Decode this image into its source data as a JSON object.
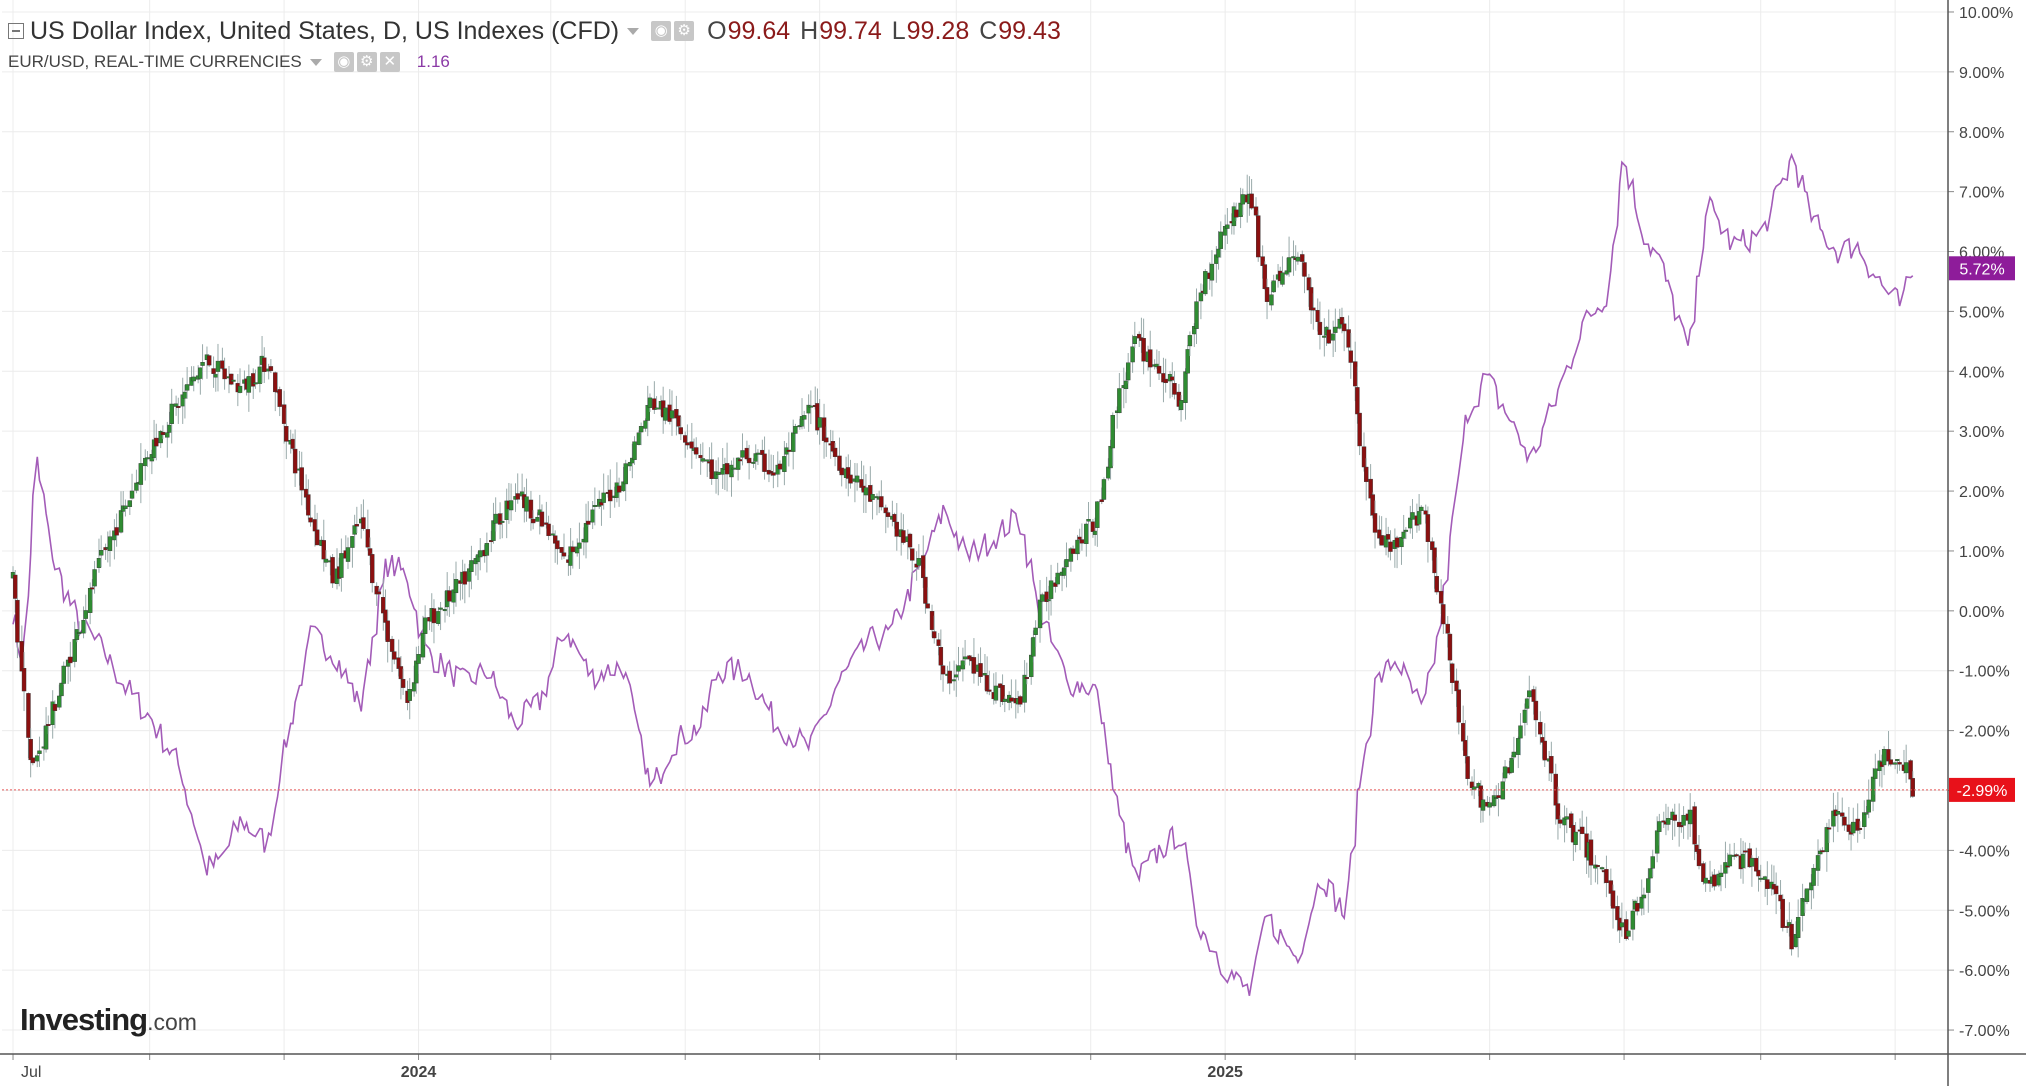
{
  "legend": {
    "main_title": "US Dollar Index, United States, D, US Indexes (CFD)",
    "ohlc": [
      {
        "key": "O",
        "value": "99.64"
      },
      {
        "key": "H",
        "value": "99.74"
      },
      {
        "key": "L",
        "value": "99.28"
      },
      {
        "key": "C",
        "value": "99.43"
      }
    ],
    "sub_title": "EUR/USD, REAL-TIME CURRENCIES",
    "sub_value": "1.16"
  },
  "logo": {
    "main": "Investing",
    "suffix": ".com"
  },
  "colors": {
    "up": "#2f8c32",
    "down": "#8b1010",
    "eurusd_line": "#a35cb8",
    "last_dxy_label": "#e8111a",
    "last_eur_label": "#8e1c9a",
    "grid": "#ececec"
  },
  "chart_data": {
    "type": "candlestick+line",
    "y_unit": "percent change",
    "ylim": [
      -7.4,
      10.2
    ],
    "y_ticks": [
      "10.00%",
      "9.00%",
      "8.00%",
      "7.00%",
      "6.00%",
      "5.00%",
      "4.00%",
      "3.00%",
      "2.00%",
      "1.00%",
      "0.00%",
      "-1.00%",
      "-2.00%",
      "-3.00%",
      "-4.00%",
      "-5.00%",
      "-6.00%",
      "-7.00%"
    ],
    "x_tick_labels": [
      "Jul",
      "2024",
      "2025"
    ],
    "grid": true,
    "series": [
      {
        "name": "US Dollar Index, United States, D, US Indexes (CFD)",
        "style": "candlestick",
        "last_label": "-2.99%",
        "close_points": [
          [
            "2023-07-01",
            0.6
          ],
          [
            "2023-07-10",
            -2.7
          ],
          [
            "2023-07-20",
            -1.6
          ],
          [
            "2023-07-31",
            -0.3
          ],
          [
            "2023-08-10",
            0.8
          ],
          [
            "2023-08-22",
            1.8
          ],
          [
            "2023-08-31",
            2.6
          ],
          [
            "2023-09-15",
            3.5
          ],
          [
            "2023-09-27",
            4.2
          ],
          [
            "2023-10-03",
            4.0
          ],
          [
            "2023-10-13",
            3.7
          ],
          [
            "2023-10-25",
            4.2
          ],
          [
            "2023-11-01",
            3.2
          ],
          [
            "2023-11-14",
            1.5
          ],
          [
            "2023-11-24",
            0.5
          ],
          [
            "2023-12-06",
            1.5
          ],
          [
            "2023-12-18",
            -0.3
          ],
          [
            "2023-12-27",
            -1.5
          ],
          [
            "2024-01-05",
            -0.2
          ],
          [
            "2024-01-22",
            0.5
          ],
          [
            "2024-02-02",
            1.2
          ],
          [
            "2024-02-14",
            2.0
          ],
          [
            "2024-02-26",
            1.5
          ],
          [
            "2024-03-08",
            0.8
          ],
          [
            "2024-03-20",
            1.6
          ],
          [
            "2024-04-03",
            2.2
          ],
          [
            "2024-04-16",
            3.5
          ],
          [
            "2024-04-26",
            3.2
          ],
          [
            "2024-05-09",
            2.6
          ],
          [
            "2024-05-16",
            2.2
          ],
          [
            "2024-05-29",
            2.6
          ],
          [
            "2024-06-12",
            2.3
          ],
          [
            "2024-06-27",
            3.4
          ],
          [
            "2024-07-10",
            2.5
          ],
          [
            "2024-07-24",
            1.9
          ],
          [
            "2024-08-02",
            1.6
          ],
          [
            "2024-08-16",
            0.7
          ],
          [
            "2024-08-27",
            -1.2
          ],
          [
            "2024-09-06",
            -0.8
          ],
          [
            "2024-09-18",
            -1.3
          ],
          [
            "2024-09-30",
            -1.6
          ],
          [
            "2024-10-09",
            0.0
          ],
          [
            "2024-10-22",
            1.0
          ],
          [
            "2024-11-04",
            1.5
          ],
          [
            "2024-11-14",
            3.6
          ],
          [
            "2024-11-22",
            4.5
          ],
          [
            "2024-12-03",
            4.0
          ],
          [
            "2024-12-12",
            3.5
          ],
          [
            "2024-12-20",
            5.2
          ],
          [
            "2025-01-02",
            6.5
          ],
          [
            "2025-01-13",
            7.0
          ],
          [
            "2025-01-20",
            5.2
          ],
          [
            "2025-02-03",
            6.0
          ],
          [
            "2025-02-14",
            4.5
          ],
          [
            "2025-02-25",
            4.8
          ],
          [
            "2025-03-03",
            3.0
          ],
          [
            "2025-03-11",
            1.2
          ],
          [
            "2025-03-20",
            1.0
          ],
          [
            "2025-04-01",
            1.8
          ],
          [
            "2025-04-08",
            0.4
          ],
          [
            "2025-04-21",
            -2.6
          ],
          [
            "2025-04-30",
            -3.4
          ],
          [
            "2025-05-12",
            -2.5
          ],
          [
            "2025-05-20",
            -1.3
          ],
          [
            "2025-06-02",
            -3.4
          ],
          [
            "2025-06-13",
            -3.9
          ],
          [
            "2025-06-24",
            -4.5
          ],
          [
            "2025-07-01",
            -5.4
          ],
          [
            "2025-07-11",
            -4.6
          ],
          [
            "2025-07-17",
            -3.6
          ],
          [
            "2025-07-31",
            -3.4
          ],
          [
            "2025-08-08",
            -4.7
          ],
          [
            "2025-08-20",
            -4.1
          ],
          [
            "2025-09-02",
            -4.3
          ],
          [
            "2025-09-16",
            -5.5
          ],
          [
            "2025-09-25",
            -4.3
          ],
          [
            "2025-10-06",
            -3.3
          ],
          [
            "2025-10-15",
            -3.7
          ],
          [
            "2025-10-27",
            -2.4
          ],
          [
            "2025-11-04",
            -2.4
          ],
          [
            "2025-11-10",
            -3.0
          ]
        ]
      },
      {
        "name": "EUR/USD, REAL-TIME CURRENCIES",
        "style": "line",
        "last_label": "5.72%",
        "points": [
          [
            "2023-07-01",
            0.0
          ],
          [
            "2023-07-06",
            -0.9
          ],
          [
            "2023-07-12",
            2.5
          ],
          [
            "2023-07-20",
            0.8
          ],
          [
            "2023-07-31",
            -0.2
          ],
          [
            "2023-08-10",
            -0.6
          ],
          [
            "2023-08-22",
            -1.3
          ],
          [
            "2023-08-31",
            -1.7
          ],
          [
            "2023-09-15",
            -2.6
          ],
          [
            "2023-09-27",
            -4.3
          ],
          [
            "2023-10-03",
            -4.2
          ],
          [
            "2023-10-13",
            -3.5
          ],
          [
            "2023-10-25",
            -3.9
          ],
          [
            "2023-11-01",
            -2.4
          ],
          [
            "2023-11-14",
            -0.4
          ],
          [
            "2023-11-24",
            -0.7
          ],
          [
            "2023-12-06",
            -1.6
          ],
          [
            "2023-12-18",
            0.8
          ],
          [
            "2023-12-27",
            0.6
          ],
          [
            "2024-01-05",
            -0.7
          ],
          [
            "2024-01-22",
            -1.2
          ],
          [
            "2024-02-02",
            -1.0
          ],
          [
            "2024-02-14",
            -1.9
          ],
          [
            "2024-02-26",
            -1.5
          ],
          [
            "2024-03-08",
            -0.3
          ],
          [
            "2024-03-20",
            -1.1
          ],
          [
            "2024-04-03",
            -0.9
          ],
          [
            "2024-04-16",
            -3.0
          ],
          [
            "2024-04-26",
            -2.2
          ],
          [
            "2024-05-09",
            -1.9
          ],
          [
            "2024-05-16",
            -1.0
          ],
          [
            "2024-05-29",
            -1.0
          ],
          [
            "2024-06-12",
            -1.9
          ],
          [
            "2024-06-27",
            -2.3
          ],
          [
            "2024-07-10",
            -1.2
          ],
          [
            "2024-07-24",
            -0.5
          ],
          [
            "2024-08-02",
            -0.4
          ],
          [
            "2024-08-16",
            0.7
          ],
          [
            "2024-08-27",
            1.7
          ],
          [
            "2024-09-06",
            0.9
          ],
          [
            "2024-09-18",
            1.2
          ],
          [
            "2024-09-30",
            1.6
          ],
          [
            "2024-10-09",
            0.0
          ],
          [
            "2024-10-22",
            -1.2
          ],
          [
            "2024-11-04",
            -1.3
          ],
          [
            "2024-11-14",
            -3.4
          ],
          [
            "2024-11-22",
            -4.5
          ],
          [
            "2024-12-03",
            -4.0
          ],
          [
            "2024-12-12",
            -3.7
          ],
          [
            "2024-12-20",
            -5.2
          ],
          [
            "2025-01-02",
            -6.0
          ],
          [
            "2025-01-13",
            -6.4
          ],
          [
            "2025-01-20",
            -5.1
          ],
          [
            "2025-02-03",
            -5.8
          ],
          [
            "2025-02-14",
            -4.4
          ],
          [
            "2025-02-25",
            -5.1
          ],
          [
            "2025-03-03",
            -3.0
          ],
          [
            "2025-03-11",
            -1.2
          ],
          [
            "2025-03-20",
            -0.8
          ],
          [
            "2025-04-01",
            -1.7
          ],
          [
            "2025-04-08",
            -0.5
          ],
          [
            "2025-04-21",
            3.3
          ],
          [
            "2025-04-30",
            3.9
          ],
          [
            "2025-05-12",
            3.1
          ],
          [
            "2025-05-20",
            2.5
          ],
          [
            "2025-06-02",
            3.7
          ],
          [
            "2025-06-13",
            4.8
          ],
          [
            "2025-06-24",
            5.3
          ],
          [
            "2025-07-01",
            7.6
          ],
          [
            "2025-07-11",
            6.2
          ],
          [
            "2025-07-17",
            5.9
          ],
          [
            "2025-07-31",
            4.3
          ],
          [
            "2025-08-08",
            6.8
          ],
          [
            "2025-08-20",
            6.1
          ],
          [
            "2025-09-02",
            6.3
          ],
          [
            "2025-09-16",
            7.6
          ],
          [
            "2025-09-25",
            6.5
          ],
          [
            "2025-10-06",
            6.0
          ],
          [
            "2025-10-15",
            6.1
          ],
          [
            "2025-10-27",
            5.4
          ],
          [
            "2025-11-04",
            5.1
          ],
          [
            "2025-11-10",
            5.7
          ]
        ]
      }
    ]
  }
}
